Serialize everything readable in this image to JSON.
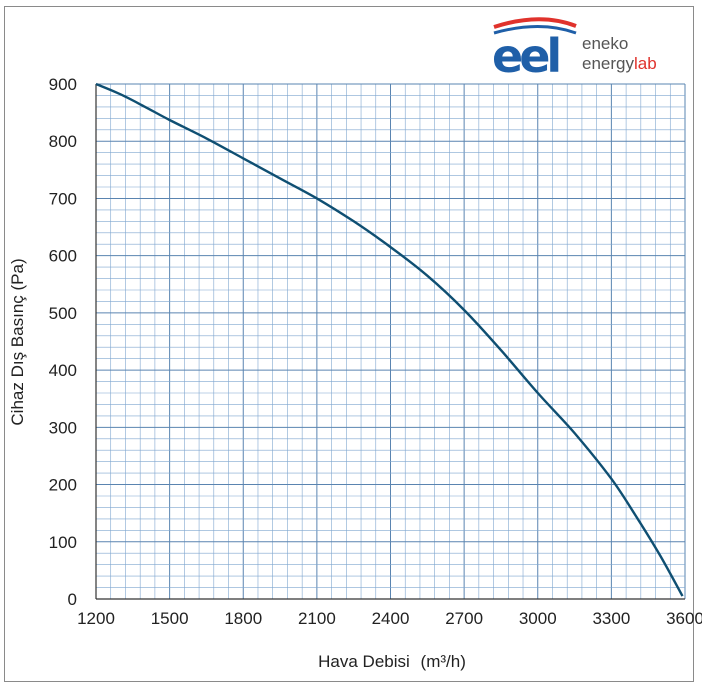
{
  "logo": {
    "mark": "eel",
    "line1": "eneko",
    "line2_main": "energy",
    "line2_accent": "lab",
    "colors": {
      "blue": "#1f5fa8",
      "red": "#e0322c",
      "gray": "#555555"
    }
  },
  "chart_data": {
    "type": "line",
    "xlabel_main": "Hava Debisi",
    "xlabel_unit": "(m³/h)",
    "ylabel": "Cihaz Dış Basınç (Pa)",
    "xlim": [
      1200,
      3600
    ],
    "ylim": [
      0,
      900
    ],
    "x_ticks": [
      1200,
      1500,
      1800,
      2100,
      2400,
      2700,
      3000,
      3300,
      3600
    ],
    "y_ticks": [
      0,
      100,
      200,
      300,
      400,
      500,
      600,
      700,
      800,
      900
    ],
    "grid": true,
    "grid_minor_per_major_x": 5,
    "grid_minor_per_major_y": 5,
    "colors": {
      "grid": "#7fa6cf",
      "curve": "#0f4f72",
      "axis": "#333333"
    },
    "series": [
      {
        "x": [
          1200,
          1300,
          1400,
          1500,
          1650,
          1800,
          1950,
          2100,
          2250,
          2400,
          2550,
          2700,
          2850,
          3000,
          3150,
          3300,
          3400,
          3500,
          3590
        ],
        "y": [
          900,
          882,
          860,
          837,
          805,
          770,
          735,
          700,
          660,
          615,
          565,
          505,
          435,
          360,
          290,
          210,
          145,
          75,
          5
        ]
      }
    ]
  }
}
